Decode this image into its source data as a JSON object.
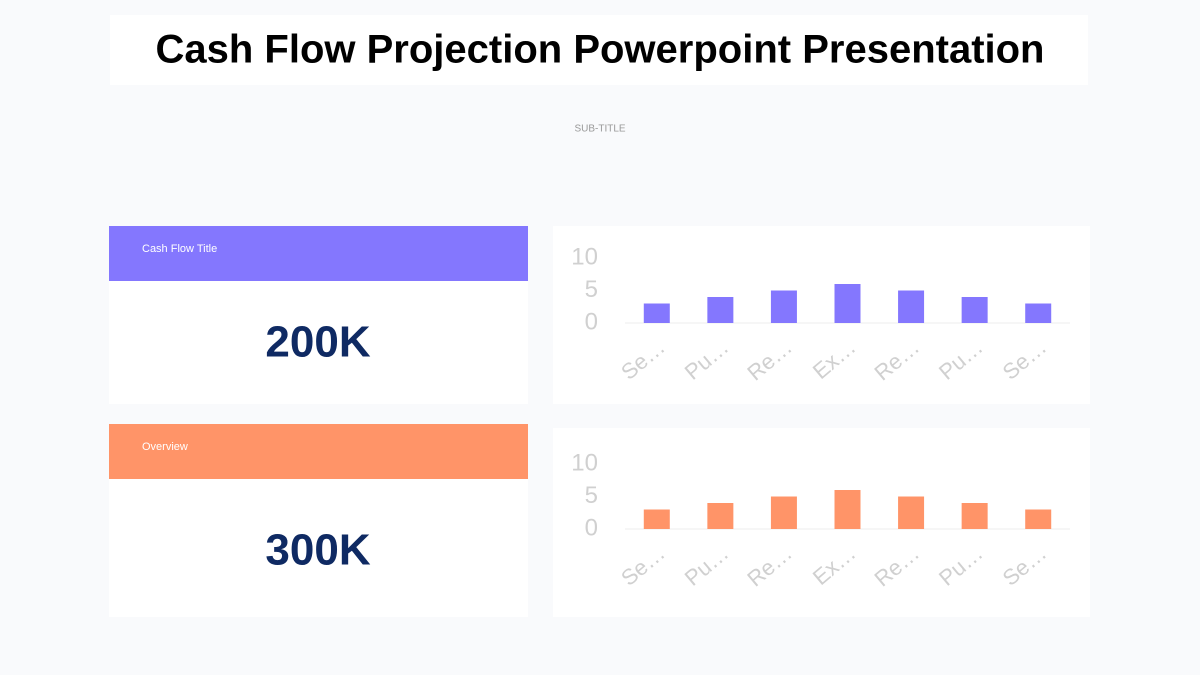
{
  "title": "Cash Flow Projection Powerpoint Presentation",
  "subtitle": "SUB-TITLE",
  "cards": [
    {
      "label": "Cash Flow Title",
      "value": "200K",
      "color": "#8477fe"
    },
    {
      "label": "Overview",
      "value": "300K",
      "color": "#ff9468"
    }
  ],
  "chart_data": [
    {
      "type": "bar",
      "categories": [
        "Se…",
        "Pu…",
        "Re…",
        "Ex…",
        "Re…",
        "Pu…",
        "Se…"
      ],
      "values": [
        3,
        4,
        5,
        6,
        5,
        4,
        3
      ],
      "color": "#8477fe",
      "ylim": [
        0,
        10
      ],
      "yticks": [
        0,
        5,
        10
      ]
    },
    {
      "type": "bar",
      "categories": [
        "Se…",
        "Pu…",
        "Re…",
        "Ex…",
        "Re…",
        "Pu…",
        "Se…"
      ],
      "values": [
        3,
        4,
        5,
        6,
        5,
        4,
        3
      ],
      "color": "#ff9468",
      "ylim": [
        0,
        10
      ],
      "yticks": [
        0,
        5,
        10
      ]
    }
  ]
}
